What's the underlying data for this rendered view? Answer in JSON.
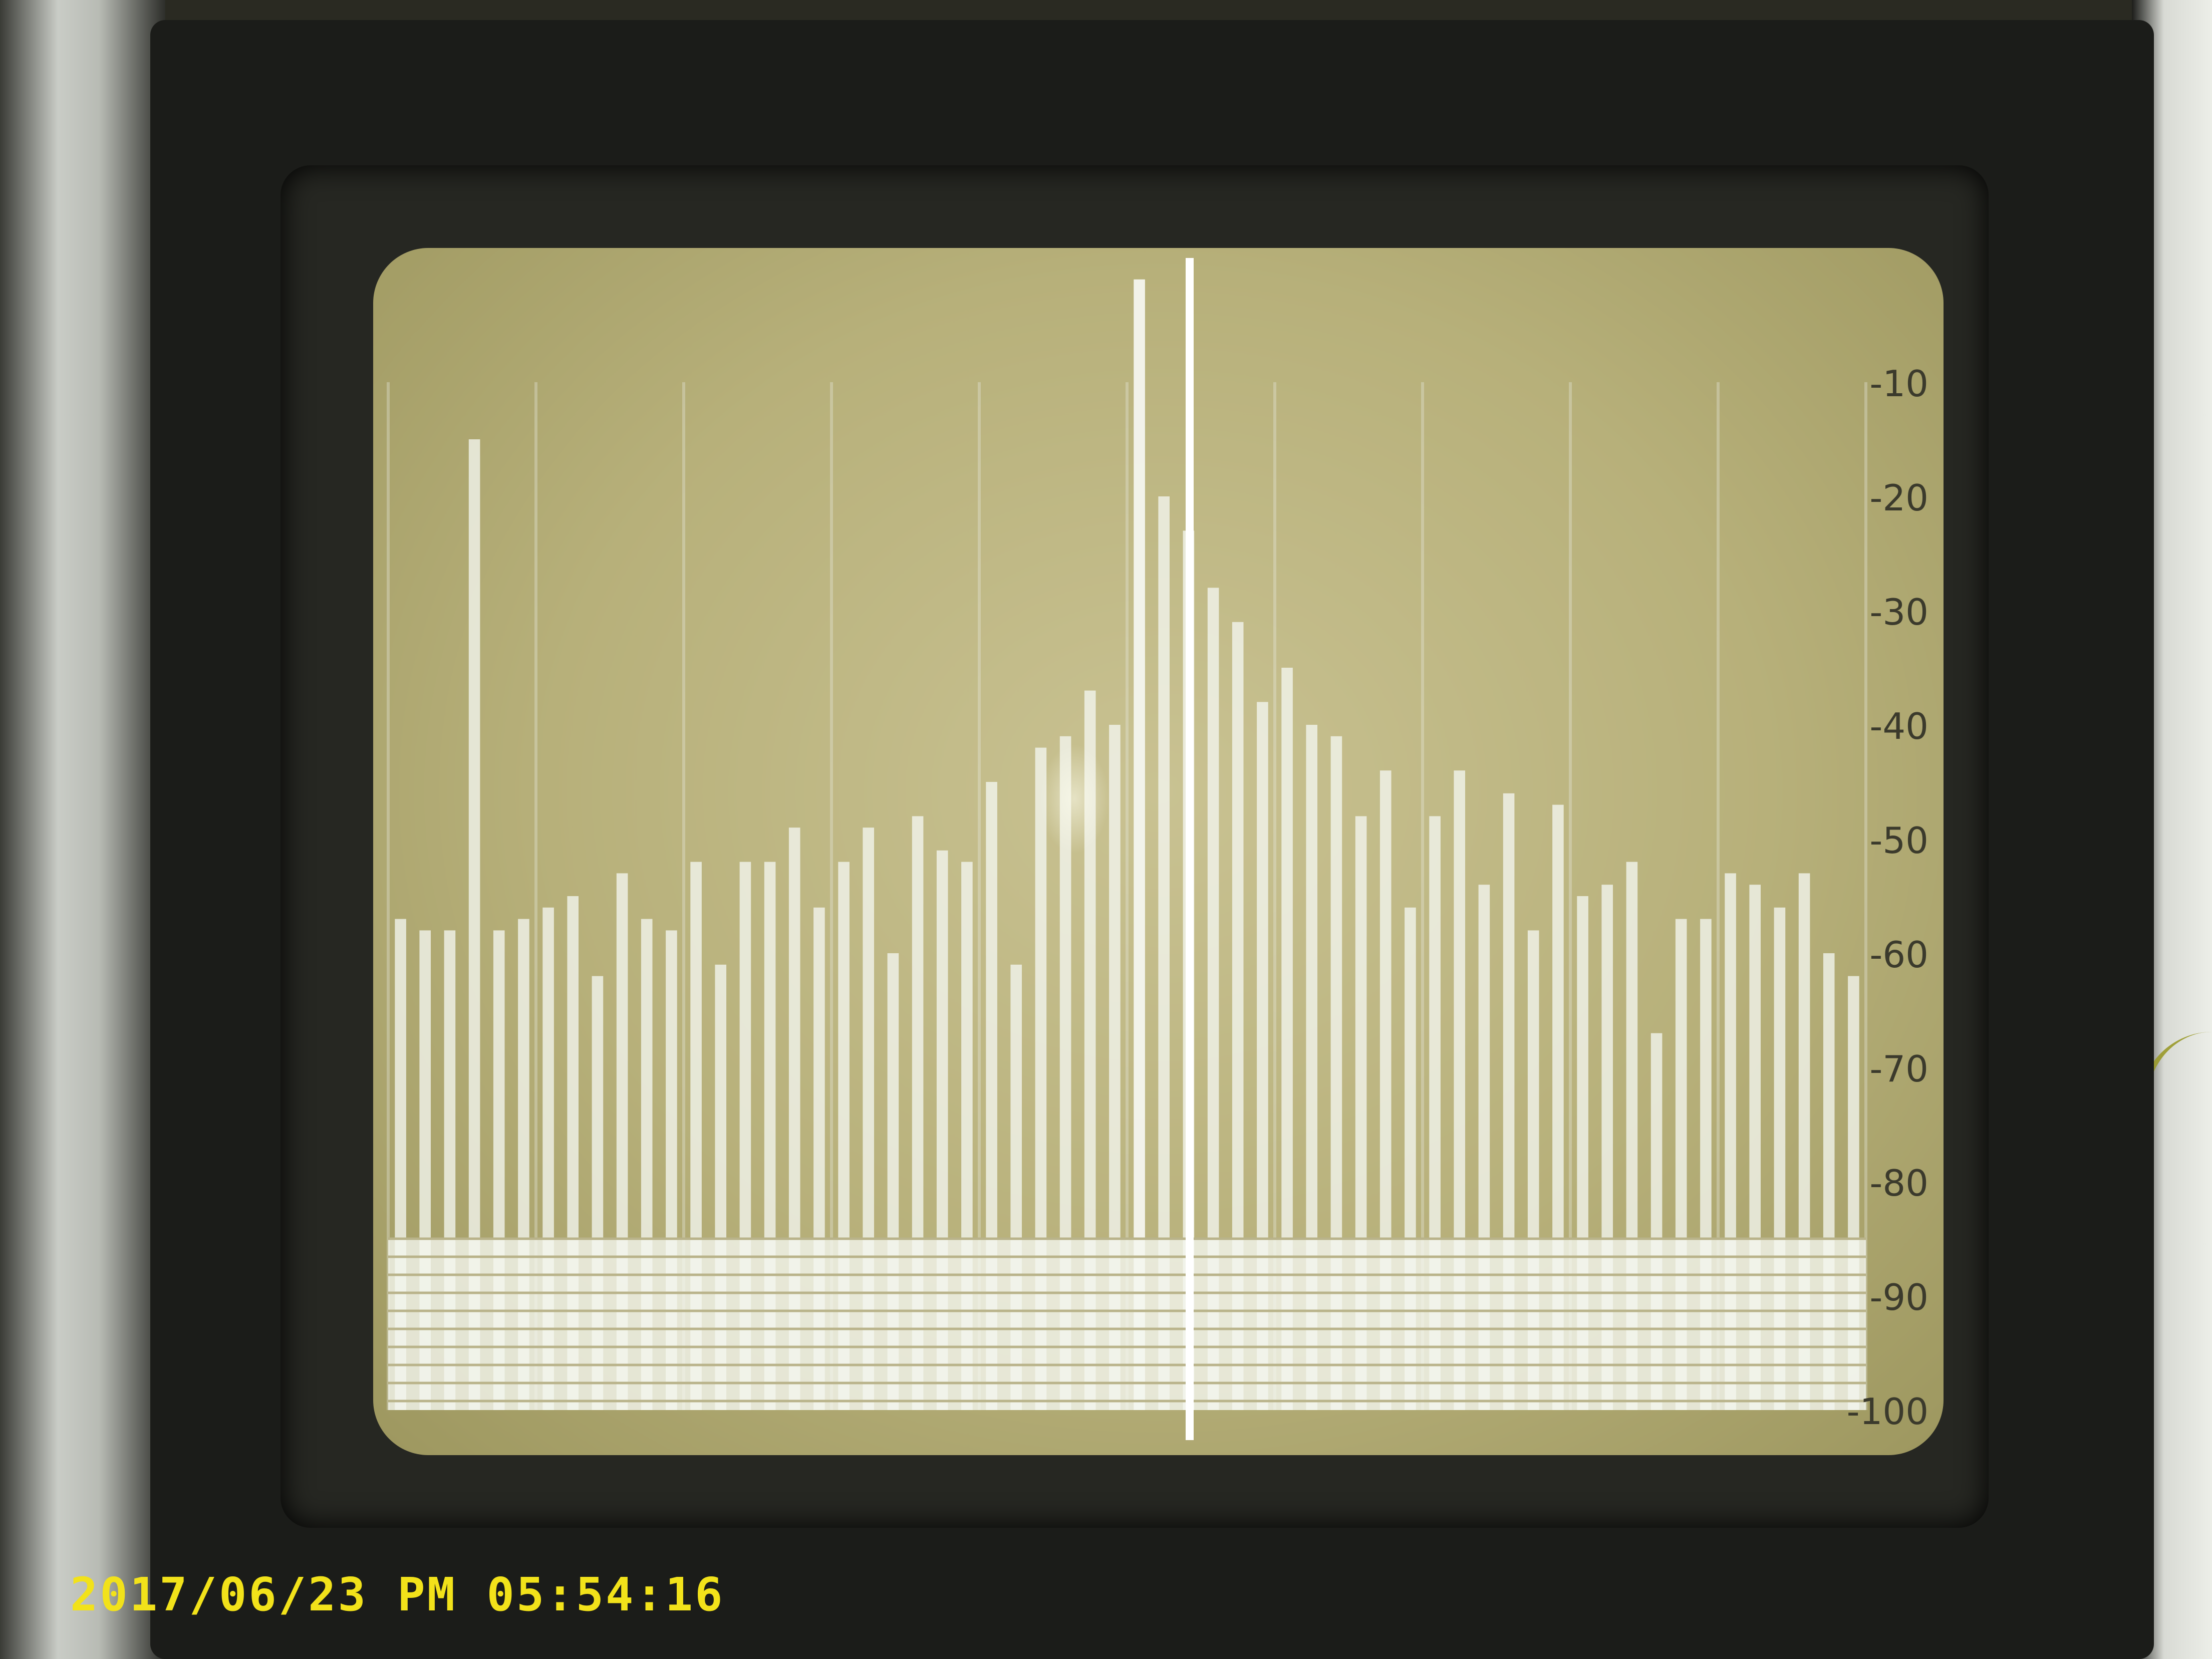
{
  "timestamp": "2017/06/23 PM 05:54:16",
  "scale_labels": [
    "-10",
    "-20",
    "-30",
    "-40",
    "-50",
    "-60",
    "-70",
    "-80",
    "-90",
    "-100"
  ],
  "colors": {
    "trace": "#f4f6ef",
    "screen": "#b7b07a",
    "timestamp": "#f2e21a",
    "grid": "#e9ebe2"
  },
  "spectrum_levels_db": [
    -57,
    -58,
    -58,
    -15,
    -58,
    -57,
    -56,
    -55,
    -62,
    -53,
    -57,
    -58,
    -52,
    -61,
    -52,
    -52,
    -49,
    -56,
    -52,
    -49,
    -60,
    -48,
    -51,
    -52,
    -45,
    -61,
    -42,
    -41,
    -37,
    -40,
    -1,
    -20,
    -23,
    -28,
    -31,
    -38,
    -35,
    -40,
    -41,
    -48,
    -44,
    -56,
    -48,
    -44,
    -54,
    -46,
    -58,
    -47,
    -55,
    -54,
    -52,
    -67,
    -57,
    -57,
    -53,
    -54,
    -56,
    -53,
    -60,
    -62
  ]
}
